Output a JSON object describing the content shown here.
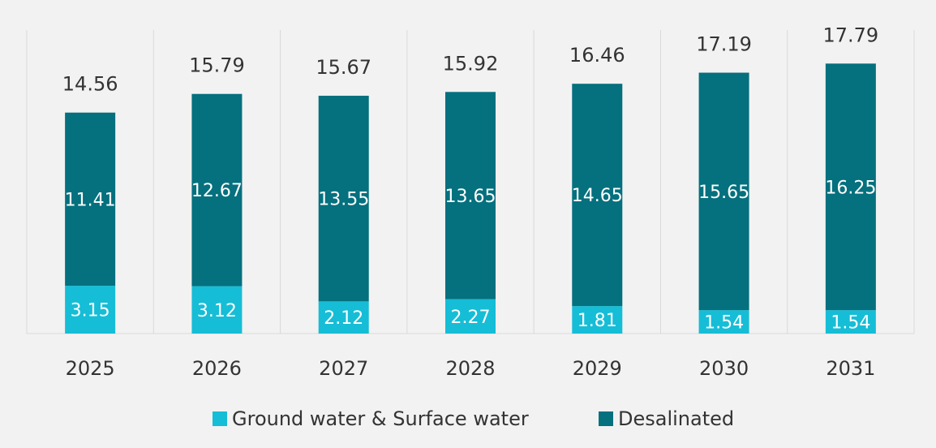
{
  "chart_data": {
    "type": "stacked_bar",
    "categories": [
      "2025",
      "2026",
      "2027",
      "2028",
      "2029",
      "2030",
      "2031"
    ],
    "series": [
      {
        "name": "Ground water & Surface water",
        "color": "#16bdd6",
        "values": [
          3.15,
          3.12,
          2.12,
          2.27,
          1.81,
          1.54,
          1.54
        ]
      },
      {
        "name": "Desalinated",
        "color": "#05707e",
        "values": [
          11.41,
          12.67,
          13.55,
          13.65,
          14.65,
          15.65,
          16.25
        ]
      }
    ],
    "totals": [
      14.56,
      15.79,
      15.67,
      15.92,
      16.46,
      17.19,
      17.79
    ],
    "ylim": [
      0,
      20
    ],
    "grid": "vertical-separators",
    "legend": "bottom"
  }
}
